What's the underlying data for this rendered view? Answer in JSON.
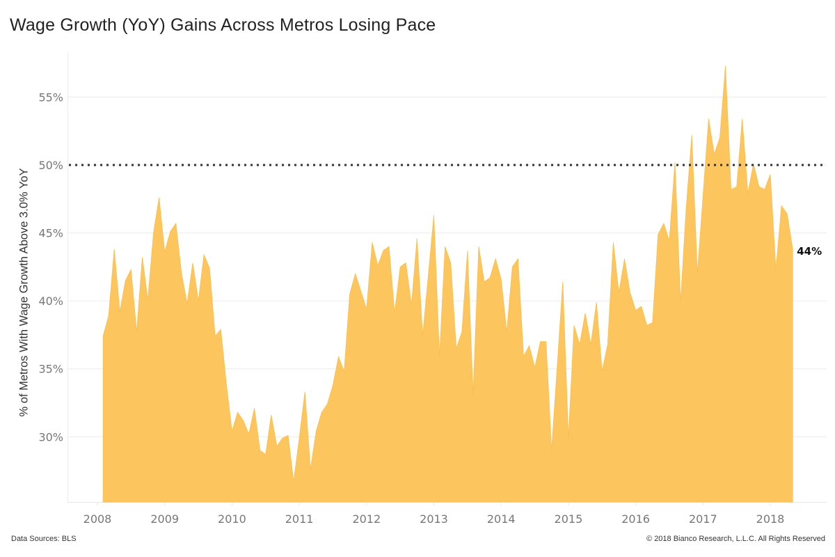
{
  "chart_data": {
    "type": "area",
    "title": "Wage Growth (YoY) Gains Across Metros Losing Pace",
    "xlabel": "",
    "ylabel": "% of Metros With Wage Growth Above 3.0% YoY",
    "x_start": "2008-02",
    "x_frequency": "monthly",
    "x_tick_labels": [
      "2008",
      "2009",
      "2010",
      "2011",
      "2012",
      "2013",
      "2014",
      "2015",
      "2016",
      "2017",
      "2018"
    ],
    "y_tick_labels": [
      "30%",
      "35%",
      "40%",
      "45%",
      "50%",
      "55%"
    ],
    "y_ticks": [
      30,
      35,
      40,
      45,
      50,
      55
    ],
    "ylim": [
      25.2,
      58.3
    ],
    "grid": "horizontal",
    "reference_line": {
      "value": 50,
      "style": "dotted"
    },
    "end_label": "44%",
    "series": [
      {
        "name": "% of Metros With Wage Growth Above 3.0% YoY",
        "color": "#FDC55E",
        "values": [
          37.4,
          38.9,
          43.8,
          39.2,
          41.5,
          42.3,
          37.7,
          43.2,
          40.1,
          45.0,
          47.6,
          43.6,
          45.1,
          45.7,
          42.0,
          39.8,
          42.8,
          40.0,
          43.4,
          42.4,
          37.4,
          37.9,
          33.9,
          30.4,
          31.8,
          31.2,
          30.2,
          32.1,
          29.0,
          28.7,
          31.6,
          29.3,
          29.9,
          30.1,
          26.7,
          29.9,
          33.3,
          27.6,
          30.4,
          31.8,
          32.4,
          33.8,
          35.9,
          34.8,
          40.5,
          42.0,
          40.7,
          39.4,
          44.3,
          42.6,
          43.7,
          44.0,
          39.1,
          42.5,
          42.8,
          39.7,
          44.6,
          37.4,
          41.8,
          46.3,
          35.9,
          44.0,
          42.8,
          36.5,
          37.7,
          43.7,
          33.1,
          44.0,
          41.4,
          41.7,
          43.1,
          41.6,
          37.7,
          42.5,
          43.1,
          35.9,
          36.7,
          35.1,
          37.0,
          37.0,
          29.0,
          35.2,
          41.4,
          29.9,
          38.2,
          36.8,
          39.1,
          36.8,
          39.9,
          34.8,
          36.8,
          44.3,
          40.6,
          43.1,
          40.6,
          39.3,
          39.6,
          38.2,
          38.4,
          44.9,
          45.7,
          44.4,
          50.2,
          39.9,
          46.8,
          52.2,
          42.0,
          47.7,
          53.4,
          50.8,
          52.0,
          57.3,
          48.2,
          48.4,
          53.4,
          47.9,
          50.1,
          48.4,
          48.2,
          49.3,
          42.3,
          47.0,
          46.4,
          43.8
        ]
      }
    ]
  },
  "footer": {
    "source": "Data Sources: BLS",
    "copyright": "© 2018 Bianco Research, L.L.C. All Rights Reserved"
  }
}
